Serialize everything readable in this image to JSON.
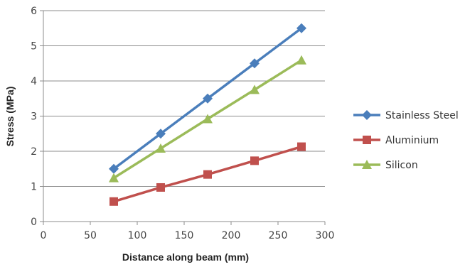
{
  "chart_data": {
    "type": "line",
    "xlabel": "Distance along beam (mm)",
    "ylabel": "Stress (MPa)",
    "xlim": [
      0,
      300
    ],
    "ylim": [
      0,
      6
    ],
    "xticks": [
      0,
      50,
      100,
      150,
      200,
      250,
      300
    ],
    "yticks": [
      0,
      1,
      2,
      3,
      4,
      5,
      6
    ],
    "grid": "horizontal",
    "legend_position": "right",
    "series": [
      {
        "name": "Stainless Steel",
        "color": "#4a7ebb",
        "marker": "diamond",
        "x": [
          75,
          125,
          175,
          225,
          275
        ],
        "y": [
          1.5,
          2.5,
          3.5,
          4.5,
          5.5
        ]
      },
      {
        "name": "Aluminium",
        "color": "#c0504d",
        "marker": "square",
        "x": [
          75,
          125,
          175,
          225,
          275
        ],
        "y": [
          0.57,
          0.97,
          1.34,
          1.73,
          2.13
        ]
      },
      {
        "name": "Silicon",
        "color": "#9bbb59",
        "marker": "triangle",
        "x": [
          75,
          125,
          175,
          225,
          275
        ],
        "y": [
          1.24,
          2.08,
          2.92,
          3.75,
          4.59
        ]
      }
    ]
  }
}
